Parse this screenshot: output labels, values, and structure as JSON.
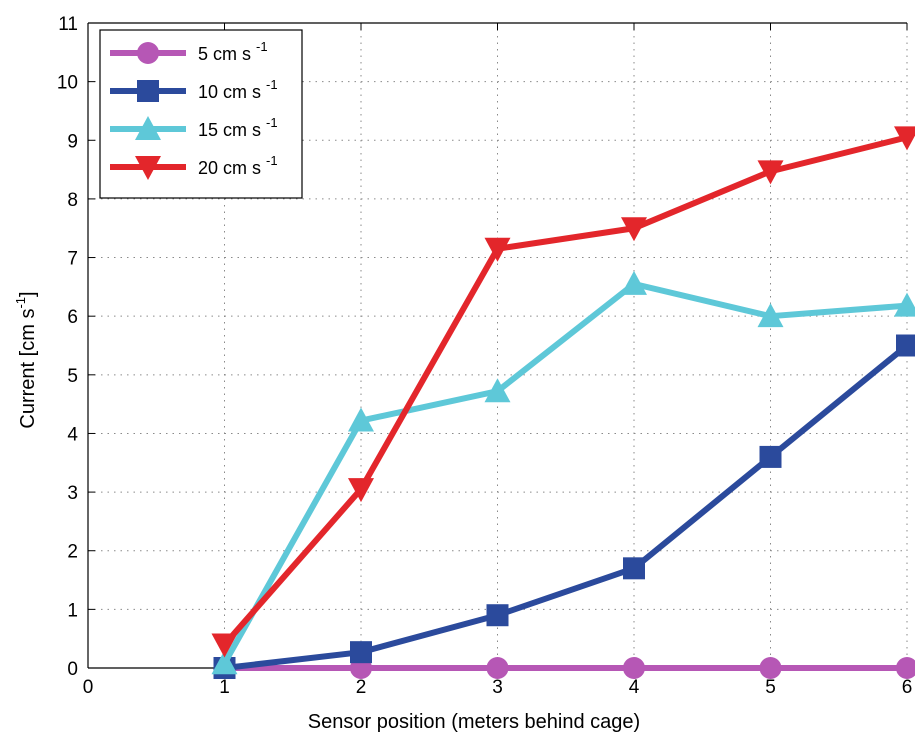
{
  "chart_data": {
    "type": "line",
    "xlabel": "Sensor position (meters behind cage)",
    "ylabel": "Current [cm s",
    "ylabel_sup": "-1",
    "ylabel_close": "]",
    "xlim": [
      0,
      6
    ],
    "ylim": [
      0,
      11
    ],
    "x_ticks": [
      "0",
      "1",
      "2",
      "3",
      "4",
      "5",
      "6"
    ],
    "y_ticks": [
      "0",
      "1",
      "2",
      "3",
      "4",
      "5",
      "6",
      "7",
      "8",
      "9",
      "10",
      "11"
    ],
    "grid": true,
    "legend_position": "top-left",
    "x": [
      1,
      2,
      3,
      4,
      5,
      6
    ],
    "series": [
      {
        "name": "5 cm s",
        "sup": "-1",
        "color": "#b657b5",
        "marker": "circle",
        "values": [
          0.0,
          0.0,
          0.0,
          0.0,
          0.0,
          0.0
        ]
      },
      {
        "name": "10 cm s",
        "sup": "-1",
        "color": "#2b4a9c",
        "marker": "square",
        "values": [
          0.0,
          0.27,
          0.9,
          1.7,
          3.6,
          5.5
        ]
      },
      {
        "name": "15 cm s",
        "sup": "-1",
        "color": "#5ec8d8",
        "marker": "triangle-up",
        "values": [
          0.08,
          4.22,
          4.72,
          6.55,
          6.0,
          6.18
        ]
      },
      {
        "name": "20 cm s",
        "sup": "-1",
        "color": "#e3262b",
        "marker": "triangle-down",
        "values": [
          0.4,
          3.05,
          7.15,
          7.5,
          8.47,
          9.05
        ]
      }
    ]
  }
}
